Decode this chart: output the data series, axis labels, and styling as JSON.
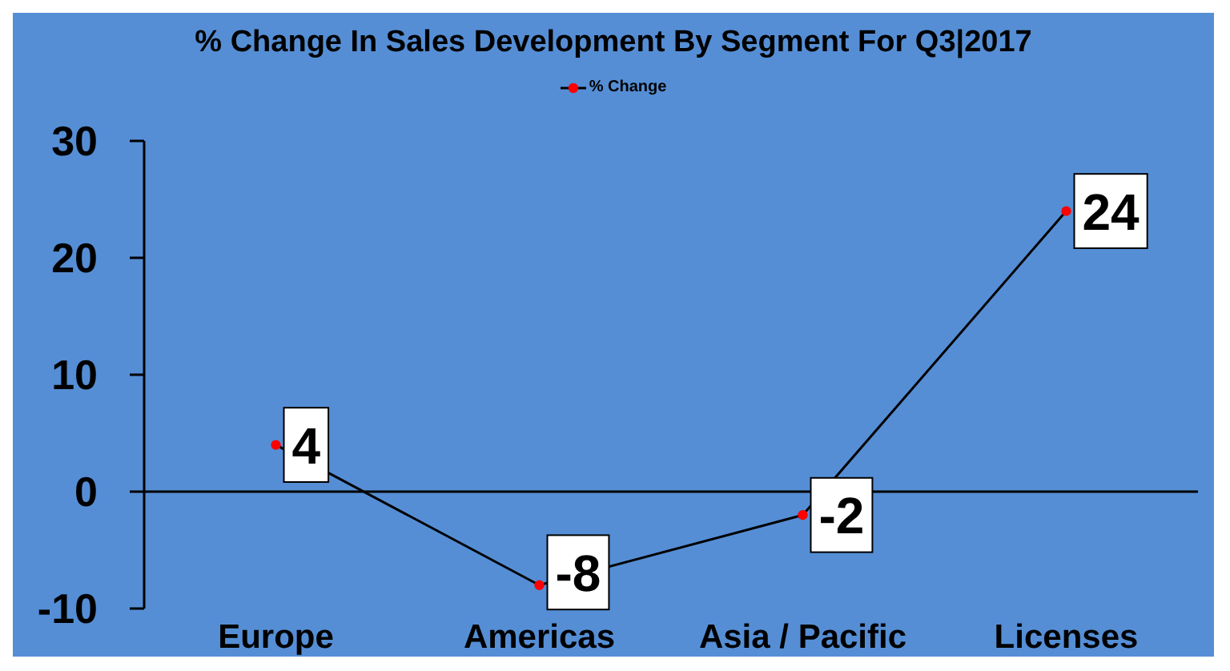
{
  "chart_data": {
    "type": "line",
    "title": "% Change In Sales Development By Segment For Q3|2017",
    "categories": [
      "Europe",
      "Americas",
      "Asia / Pacific",
      "Licenses"
    ],
    "series": [
      {
        "name": "% Change",
        "color": "#000000",
        "colors": [
          "#ff0000",
          "#ff0000",
          "#ff0000",
          "#ff0000"
        ],
        "values": [
          4,
          -8,
          -2,
          24
        ]
      }
    ],
    "ylim": [
      -10,
      30
    ],
    "yticks": [
      -10,
      0,
      10,
      20,
      30
    ],
    "legend": "top",
    "marker": "circle",
    "data_labels": true
  }
}
